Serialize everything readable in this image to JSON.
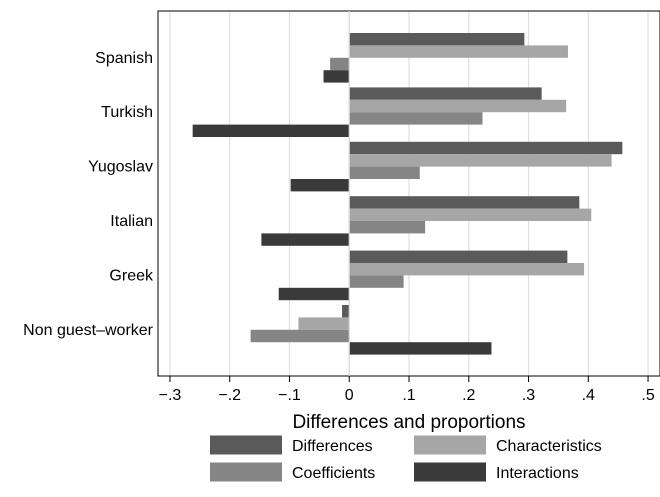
{
  "chart_data": {
    "type": "bar",
    "orientation": "horizontal",
    "categories": [
      "Spanish",
      "Turkish",
      "Yugoslav",
      "Italian",
      "Greek",
      "Non guest–worker"
    ],
    "series": [
      {
        "name": "Differences",
        "color": "#5a5a5a",
        "values": [
          0.293,
          0.322,
          0.457,
          0.385,
          0.365,
          -0.012
        ]
      },
      {
        "name": "Characteristics",
        "color": "#a6a6a6",
        "values": [
          0.366,
          0.363,
          0.439,
          0.405,
          0.393,
          -0.085
        ]
      },
      {
        "name": "Coefficients",
        "color": "#858585",
        "values": [
          -0.032,
          0.223,
          0.118,
          0.127,
          0.091,
          -0.165
        ]
      },
      {
        "name": "Interactions",
        "color": "#3a3a3a",
        "values": [
          -0.043,
          -0.262,
          -0.098,
          -0.147,
          -0.118,
          0.238
        ]
      }
    ],
    "xlabel": "Differences and proportions",
    "xlim": [
      -0.32,
      0.52
    ],
    "xticks": [
      -0.3,
      -0.2,
      -0.1,
      0,
      0.1,
      0.2,
      0.3,
      0.4,
      0.5
    ],
    "xtick_labels": [
      "−.3",
      "−.2",
      "−.1",
      "0",
      ".1",
      ".2",
      ".3",
      ".4",
      ".5"
    ],
    "grid": true,
    "legend_position": "bottom"
  }
}
